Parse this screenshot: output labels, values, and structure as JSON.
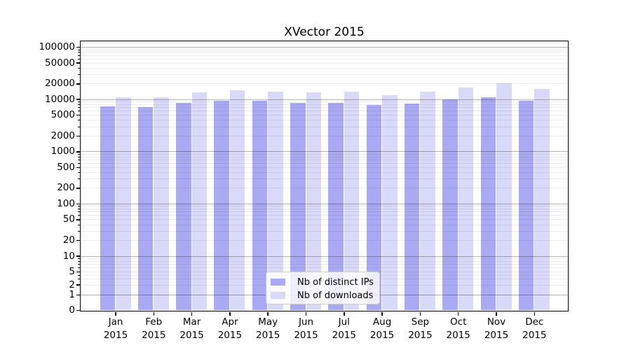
{
  "chart_data": {
    "type": "bar",
    "title": "XVector 2015",
    "yscale": "symlog",
    "xlabel": "",
    "ylabel": "",
    "grid": true,
    "legend_position": "lower center",
    "year": "2015",
    "months": [
      "Jan",
      "Feb",
      "Mar",
      "Apr",
      "May",
      "Jun",
      "Jul",
      "Aug",
      "Sep",
      "Oct",
      "Nov",
      "Dec"
    ],
    "categories": [
      "Jan 2015",
      "Feb 2015",
      "Mar 2015",
      "Apr 2015",
      "May 2015",
      "Jun 2015",
      "Jul 2015",
      "Aug 2015",
      "Sep 2015",
      "Oct 2015",
      "Nov 2015",
      "Dec 2015"
    ],
    "series": [
      {
        "name": "Nb of distinct IPs",
        "color": "#a9a9f4",
        "values": [
          7300,
          7100,
          8600,
          9400,
          9400,
          8600,
          8600,
          7800,
          8300,
          9800,
          10900,
          9400
        ]
      },
      {
        "name": "Nb of downloads",
        "color": "#d9d9fa",
        "values": [
          11000,
          11000,
          13400,
          14600,
          14000,
          13700,
          14000,
          12100,
          13900,
          17000,
          19900,
          15700
        ]
      }
    ],
    "y_ticks": [
      100000,
      50000,
      20000,
      10000,
      5000,
      2000,
      1000,
      500,
      200,
      100,
      50,
      20,
      10,
      5,
      2,
      1,
      0
    ],
    "ylim": [
      0,
      100000
    ],
    "colors": {
      "axis": "#000000",
      "grid_major": "#b0b0b0",
      "grid_minor": "#ebebeb",
      "background": "#ffffff"
    }
  }
}
